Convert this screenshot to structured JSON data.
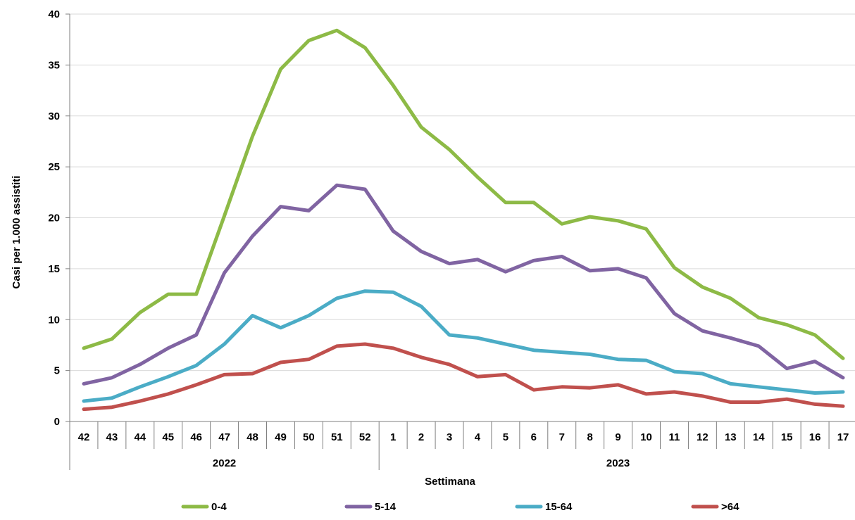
{
  "chart_data": {
    "type": "line",
    "xlabel": "Settimana",
    "ylabel": "Casi per 1.000 assistiti",
    "ylim": [
      0,
      40
    ],
    "yticks": [
      0,
      5,
      10,
      15,
      20,
      25,
      30,
      35,
      40
    ],
    "grid": true,
    "legend_position": "bottom",
    "categories": [
      "42",
      "43",
      "44",
      "45",
      "46",
      "47",
      "48",
      "49",
      "50",
      "51",
      "52",
      "1",
      "2",
      "3",
      "4",
      "5",
      "6",
      "7",
      "8",
      "9",
      "10",
      "11",
      "12",
      "13",
      "14",
      "15",
      "16",
      "17"
    ],
    "year_groups": [
      {
        "label": "2022",
        "start": 0,
        "end": 10
      },
      {
        "label": "2023",
        "start": 11,
        "end": 27
      }
    ],
    "series": [
      {
        "name": "0-4",
        "color": "#8dba46",
        "values": [
          7.2,
          8.1,
          10.7,
          12.5,
          12.5,
          20.2,
          28.0,
          34.6,
          37.4,
          38.4,
          36.7,
          33.0,
          28.9,
          26.7,
          24.0,
          21.5,
          21.5,
          19.4,
          20.1,
          19.7,
          18.9,
          15.1,
          13.2,
          12.1,
          10.2,
          9.5,
          8.5,
          6.2
        ]
      },
      {
        "name": "5-14",
        "color": "#8064a2",
        "values": [
          3.7,
          4.3,
          5.6,
          7.2,
          8.5,
          14.6,
          18.2,
          21.1,
          20.7,
          23.2,
          22.8,
          18.7,
          16.7,
          15.5,
          15.9,
          14.7,
          15.8,
          16.2,
          14.8,
          15.0,
          14.1,
          10.6,
          8.9,
          8.2,
          7.4,
          5.2,
          5.9,
          4.3
        ]
      },
      {
        "name": "15-64",
        "color": "#4bacc6",
        "values": [
          2.0,
          2.3,
          3.4,
          4.4,
          5.5,
          7.6,
          10.4,
          9.2,
          10.4,
          12.1,
          12.8,
          12.7,
          11.3,
          8.5,
          8.2,
          7.6,
          7.0,
          6.8,
          6.6,
          6.1,
          6.0,
          4.9,
          4.7,
          3.7,
          3.4,
          3.1,
          2.8,
          2.9
        ]
      },
      {
        "name": ">64",
        "color": "#c0504d",
        "values": [
          1.2,
          1.4,
          2.0,
          2.7,
          3.6,
          4.6,
          4.7,
          5.8,
          6.1,
          7.4,
          7.6,
          7.2,
          6.3,
          5.6,
          4.4,
          4.6,
          3.1,
          3.4,
          3.3,
          3.6,
          2.7,
          2.9,
          2.5,
          1.9,
          1.9,
          2.2,
          1.7,
          1.5
        ]
      }
    ]
  }
}
